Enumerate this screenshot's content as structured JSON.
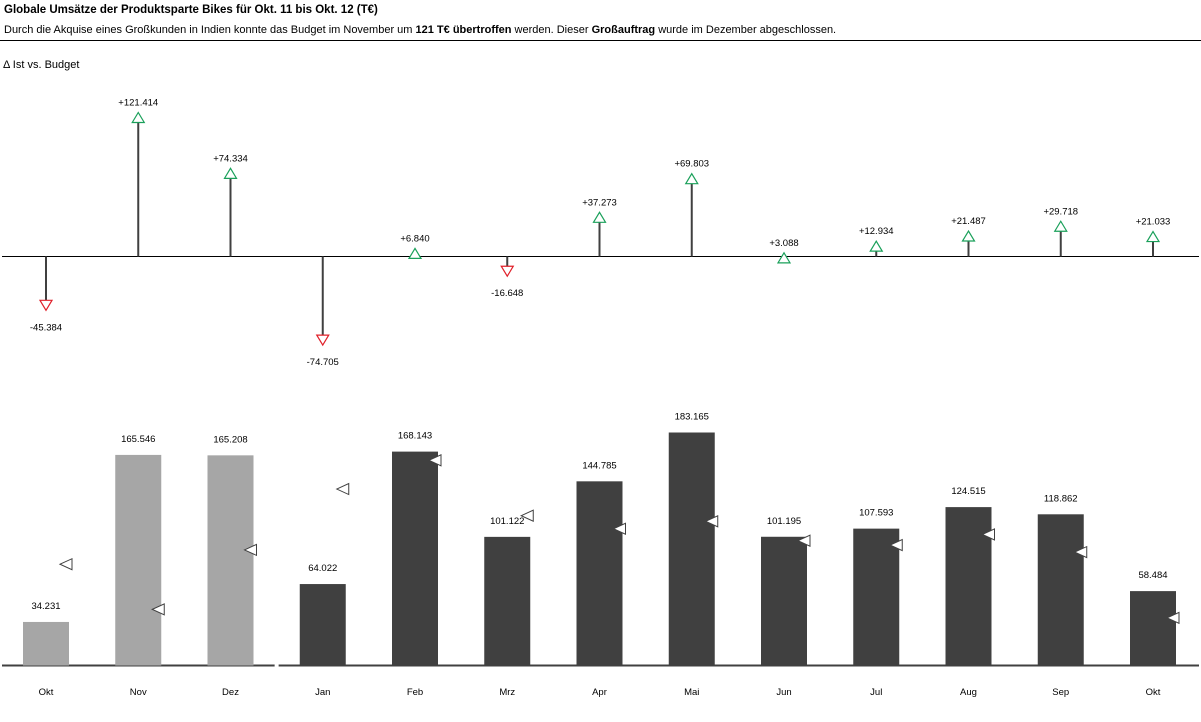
{
  "header": {
    "title": "Globale Umsätze der Produktsparte Bikes für Okt. 11 bis Okt. 12 (T€)",
    "subtitle_parts": [
      {
        "text": "Durch die Akquise eines Großkunden in Indien konnte das Budget im November um ",
        "bold": false
      },
      {
        "text": "121 T€ übertroffen",
        "bold": true
      },
      {
        "text": " werden. Dieser ",
        "bold": false
      },
      {
        "text": "Großauftrag",
        "bold": true
      },
      {
        "text": " wurde im Dezember abgeschlossen.",
        "bold": false
      }
    ]
  },
  "chart_data": [
    {
      "type": "bar",
      "name": "delta",
      "ylabel": "Δ Ist vs. Budget",
      "categories": [
        "Okt",
        "Nov",
        "Dez",
        "Jan",
        "Feb",
        "Mrz",
        "Apr",
        "Mai",
        "Jun",
        "Jul",
        "Aug",
        "Sep",
        "Okt"
      ],
      "values": [
        -45384,
        121414,
        74334,
        -74705,
        6840,
        -16648,
        37273,
        69803,
        3088,
        12934,
        21487,
        29718,
        21033
      ],
      "labels": [
        "-45.384",
        "+121.414",
        "+74.334",
        "-74.705",
        "+6.840",
        "-16.648",
        "+37.273",
        "+69.803",
        "+3.088",
        "+12.934",
        "+21.487",
        "+29.718",
        "+21.033"
      ],
      "colors": {
        "positive": "#1aa05a",
        "negative": "#e0202a",
        "stem": "#404040"
      }
    },
    {
      "type": "bar",
      "name": "ist",
      "categories": [
        "Okt",
        "Nov",
        "Dez",
        "Jan",
        "Feb",
        "Mrz",
        "Apr",
        "Mai",
        "Jun",
        "Jul",
        "Aug",
        "Sep",
        "Okt"
      ],
      "values": [
        34231,
        165546,
        165208,
        64022,
        168143,
        101122,
        144785,
        183165,
        101195,
        107593,
        124515,
        118862,
        58484
      ],
      "labels": [
        "34.231",
        "165.546",
        "165.208",
        "64.022",
        "168.143",
        "101.122",
        "144.785",
        "183.165",
        "101.195",
        "107.593",
        "124.515",
        "118.862",
        "58.484"
      ],
      "budget": [
        79615,
        44132,
        90874,
        138727,
        161303,
        117770,
        107512,
        113362,
        98107,
        94659,
        103028,
        89144,
        37451
      ],
      "year_group": [
        "prev",
        "prev",
        "prev",
        "curr",
        "curr",
        "curr",
        "curr",
        "curr",
        "curr",
        "curr",
        "curr",
        "curr",
        "curr"
      ],
      "colors": {
        "prev": "#a6a6a6",
        "curr": "#404040",
        "budget_marker": "#ffffff"
      }
    }
  ]
}
